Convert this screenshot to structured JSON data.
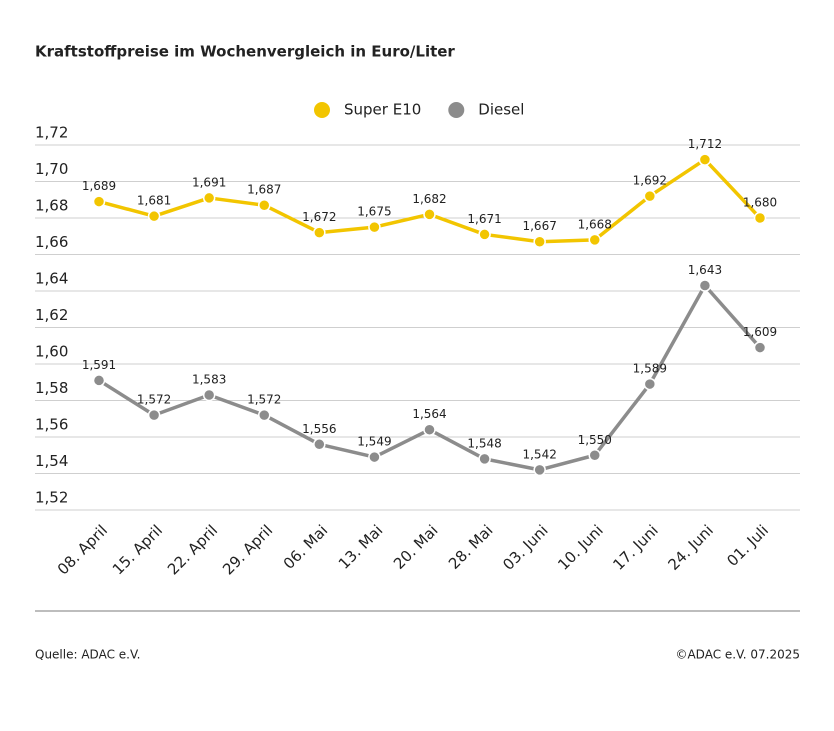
{
  "chart_data": {
    "type": "line",
    "title": "Kraftstoffpreise im Wochenvergleich in Euro/Liter",
    "categories": [
      "08. April",
      "15. April",
      "22. April",
      "29. April",
      "06. Mai",
      "13. Mai",
      "20. Mai",
      "28. Mai",
      "03. Juni",
      "10. Juni",
      "17. Juni",
      "24. Juni",
      "01. Juli"
    ],
    "series": [
      {
        "name": "Super E10",
        "color": "#f2c500",
        "values": [
          1.689,
          1.681,
          1.691,
          1.687,
          1.672,
          1.675,
          1.682,
          1.671,
          1.667,
          1.668,
          1.692,
          1.712,
          1.68
        ],
        "value_labels": [
          "1,689",
          "1,681",
          "1,691",
          "1,687",
          "1,672",
          "1,675",
          "1,682",
          "1,671",
          "1,667",
          "1,668",
          "1,692",
          "1,712",
          "1,680"
        ]
      },
      {
        "name": "Diesel",
        "color": "#8c8c8c",
        "values": [
          1.591,
          1.572,
          1.583,
          1.572,
          1.556,
          1.549,
          1.564,
          1.548,
          1.542,
          1.55,
          1.589,
          1.643,
          1.609
        ],
        "value_labels": [
          "1,591",
          "1,572",
          "1,583",
          "1,572",
          "1,556",
          "1,549",
          "1,564",
          "1,548",
          "1,542",
          "1,550",
          "1,589",
          "1,643",
          "1,609"
        ]
      }
    ],
    "ylim": [
      1.52,
      1.72
    ],
    "yticks": [
      {
        "value": 1.52,
        "label": "1,52"
      },
      {
        "value": 1.54,
        "label": "1,54"
      },
      {
        "value": 1.56,
        "label": "1,56"
      },
      {
        "value": 1.58,
        "label": "1,58"
      },
      {
        "value": 1.6,
        "label": "1,60"
      },
      {
        "value": 1.62,
        "label": "1,62"
      },
      {
        "value": 1.64,
        "label": "1,64"
      },
      {
        "value": 1.66,
        "label": "1,66"
      },
      {
        "value": 1.68,
        "label": "1,68"
      },
      {
        "value": 1.7,
        "label": "1,70"
      },
      {
        "value": 1.72,
        "label": "1,72"
      }
    ],
    "grid": true,
    "legend": "top",
    "source": "Quelle: ADAC e.V.",
    "copyright": "©ADAC e.V. 07.2025"
  }
}
